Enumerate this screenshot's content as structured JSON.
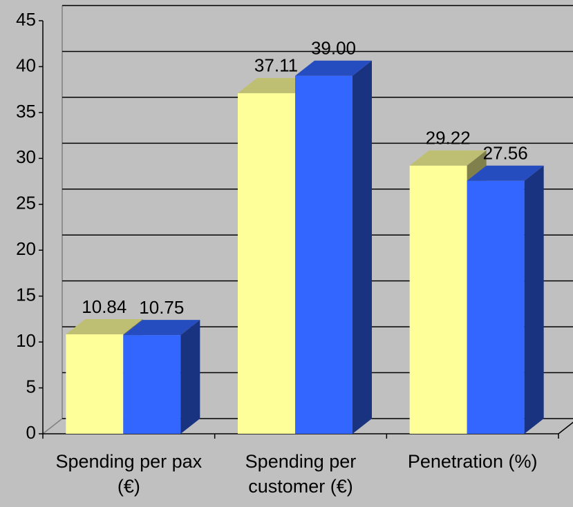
{
  "chart_data": {
    "type": "bar3d",
    "categories": [
      "Spending per pax (€)",
      "Spending per customer (€)",
      "Penetration (%)"
    ],
    "series": [
      {
        "color": "#ffff99",
        "values": [
          10.84,
          37.11,
          29.22
        ],
        "value_labels": [
          "10.84",
          "37.11",
          "29.22"
        ]
      },
      {
        "color": "#3366ff",
        "values": [
          10.75,
          39.0,
          27.56
        ],
        "value_labels": [
          "10.75",
          "39.00",
          "27.56"
        ]
      }
    ],
    "ylim": [
      0,
      45
    ],
    "yticks": [
      0,
      5,
      10,
      15,
      20,
      25,
      30,
      35,
      40,
      45
    ],
    "grid": true
  }
}
